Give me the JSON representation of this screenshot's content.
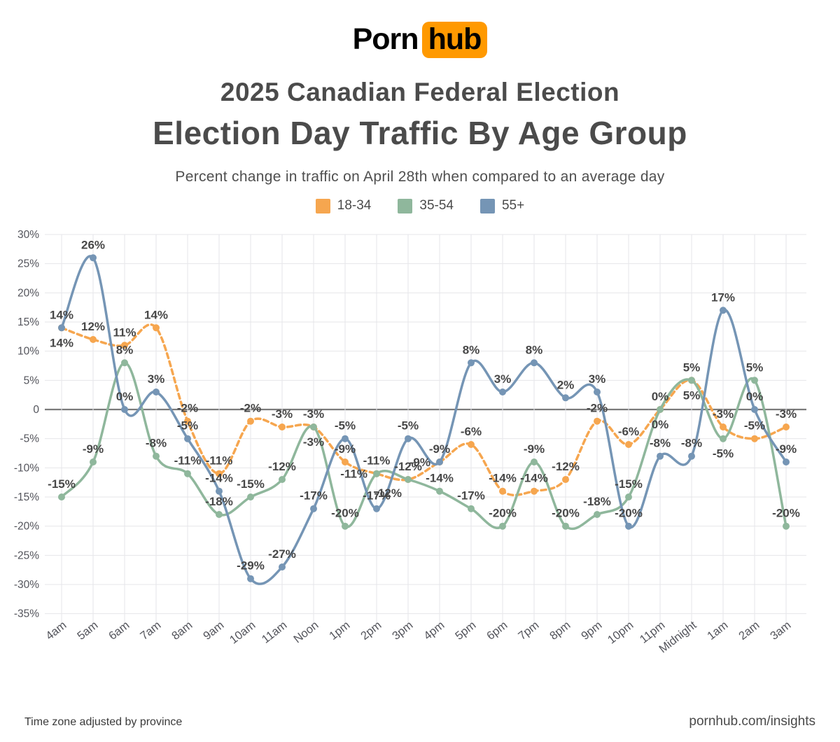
{
  "logo": {
    "part1": "Porn",
    "part2": "hub"
  },
  "header": {
    "title_line1": "2025 Canadian Federal Election",
    "title_line2": "Election Day Traffic By Age Group",
    "subtitle": "Percent change in traffic on April 28th when compared to an average day"
  },
  "footer": {
    "left": "Time zone adjusted by province",
    "right": "pornhub.com/insights"
  },
  "colors": {
    "logo_orange": "#FF9900",
    "series_orange": "#F6A64F",
    "series_green": "#8FB79C",
    "series_blue": "#7595B5",
    "grid": "#E6E6EA",
    "zero_line": "#7B7B7B",
    "data_label": "#474747",
    "axis_text": "#54555c"
  },
  "chart_data": {
    "type": "line",
    "title": "Election Day Traffic By Age Group",
    "x": [
      "4am",
      "5am",
      "6am",
      "7am",
      "8am",
      "9am",
      "10am",
      "11am",
      "Noon",
      "1pm",
      "2pm",
      "3pm",
      "4pm",
      "5pm",
      "6pm",
      "7pm",
      "8pm",
      "9pm",
      "10pm",
      "11pm",
      "Midnight",
      "1am",
      "2am",
      "3am"
    ],
    "series": [
      {
        "name": "18-34",
        "color": "#F6A64F",
        "dashed": true,
        "values": [
          14,
          12,
          11,
          14,
          -2,
          -11,
          -2,
          -3,
          -3,
          -9,
          -11,
          -12,
          -9,
          -6,
          -14,
          -14,
          -12,
          -2,
          -6,
          0,
          5,
          -3,
          -5,
          -3
        ]
      },
      {
        "name": "35-54",
        "color": "#8FB79C",
        "dashed": false,
        "values": [
          -15,
          -9,
          8,
          -8,
          -11,
          -18,
          -15,
          -12,
          -3,
          -20,
          -11,
          -12,
          -14,
          -17,
          -20,
          -9,
          -20,
          -18,
          -15,
          0,
          5,
          -5,
          5,
          -20
        ]
      },
      {
        "name": "55+",
        "color": "#7595B5",
        "dashed": false,
        "values": [
          14,
          26,
          0,
          3,
          -5,
          -14,
          -29,
          -27,
          -17,
          -5,
          -17,
          -5,
          -9,
          8,
          3,
          8,
          2,
          3,
          -20,
          -8,
          -8,
          17,
          0,
          -9
        ]
      }
    ],
    "ylim": [
      -35,
      30
    ],
    "ytick_step": 5,
    "yticks": [
      "30%",
      "25%",
      "20%",
      "15%",
      "10%",
      "5%",
      "0",
      "-5%",
      "-10%",
      "-15%",
      "-20%",
      "-25%",
      "-30%",
      "-35%"
    ],
    "grid": true,
    "legend_position": "top",
    "point_labels": "value_percent"
  }
}
